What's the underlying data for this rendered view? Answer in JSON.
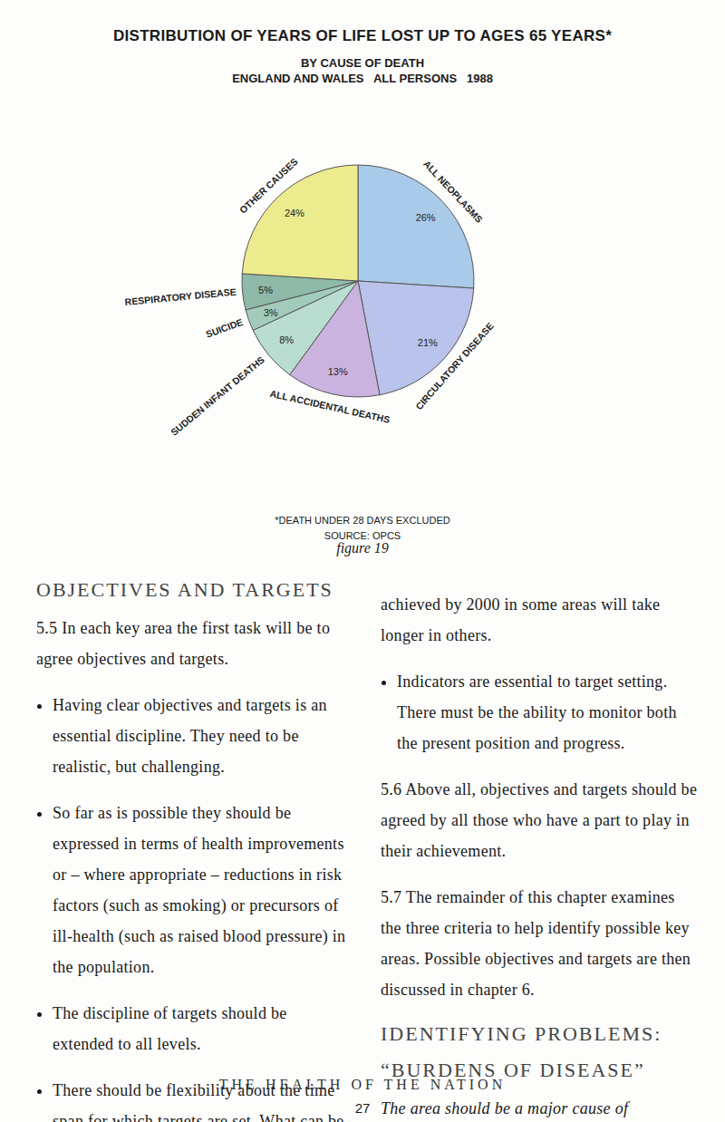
{
  "chart_data": {
    "type": "pie",
    "title": "DISTRIBUTION OF YEARS OF LIFE LOST UP TO AGES 65 YEARS*",
    "subtitle": "BY CAUSE OF DEATH",
    "annotations": [
      "ENGLAND AND WALES   ALL PERSONS   1988",
      "*DEATH UNDER 28 DAYS EXCLUDED",
      "SOURCE: OPCS"
    ],
    "categories": [
      "ALL NEOPLASMS",
      "CIRCULATORY DISEASE",
      "ALL ACCIDENTAL DEATHS",
      "SUDDEN INFANT DEATHS",
      "SUICIDE",
      "RESPIRATORY DISEASE",
      "OTHER CAUSES"
    ],
    "values": [
      26,
      21,
      13,
      8,
      3,
      5,
      24
    ],
    "value_labels": [
      "26%",
      "21%",
      "13%",
      "8%",
      "3%",
      "5%",
      "24%"
    ],
    "colors": [
      "#a9cbe9",
      "#b9c3ec",
      "#cbb3df",
      "#b9ddd0",
      "#a3cbbb",
      "#8fb9a8",
      "#ecec8e"
    ],
    "data_labels": true
  },
  "document": {
    "figure_caption": "figure 19",
    "left": [
      {
        "kind": "heading",
        "text": "OBJECTIVES AND TARGETS"
      },
      {
        "kind": "para",
        "text": "5.5 In each key area the first task will be to agree objectives and targets."
      },
      {
        "kind": "bullet",
        "text": "Having clear objectives and targets is an essential discipline. They need to be realistic, but challenging."
      },
      {
        "kind": "bullet",
        "text": "So far as is possible they should be expressed in terms of health improvements or – where appropriate – reductions in risk factors (such as smoking) or precursors of ill-health (such as raised blood pressure) in the population."
      },
      {
        "kind": "bullet",
        "text": "The discipline of targets should be extended to all levels."
      },
      {
        "kind": "bullet",
        "text": "There should be flexibility about the time span for which targets are set. What can be"
      }
    ],
    "right": [
      {
        "kind": "para",
        "text": "achieved by 2000 in some areas will take longer in others."
      },
      {
        "kind": "bullet",
        "text": "Indicators are essential to target setting. There must be the ability to monitor both the present position and progress."
      },
      {
        "kind": "para",
        "text": "5.6 Above all, objectives and targets should be agreed by all those who have a part to play in their achievement."
      },
      {
        "kind": "para",
        "text": "5.7 The remainder of this chapter examines the three criteria to help identify possible key areas. Possible objectives and targets are then discussed in chapter 6."
      },
      {
        "kind": "heading",
        "text": "IDENTIFYING PROBLEMS:"
      },
      {
        "kind": "heading",
        "text": "“BURDENS OF DISEASE”"
      },
      {
        "kind": "italic",
        "text": "The area should be a major cause of premature death or avoidable ill-health"
      }
    ],
    "footer": "THE HEALTH OF THE NATION",
    "page_number": "27"
  }
}
